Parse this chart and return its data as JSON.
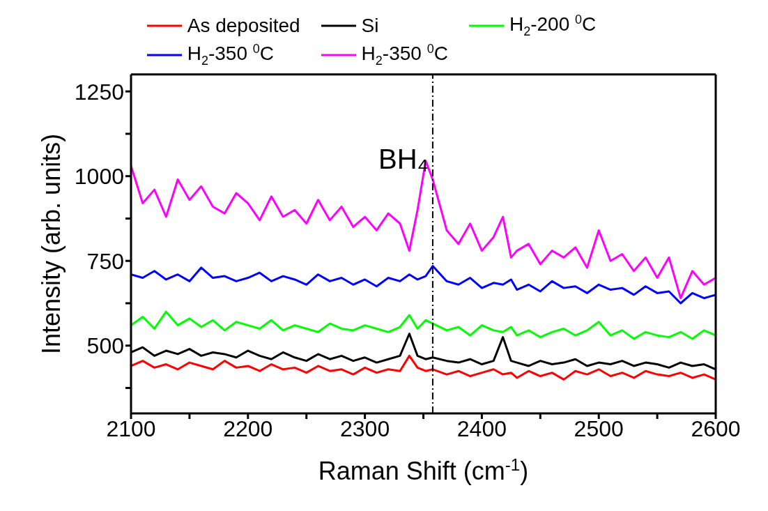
{
  "chart_data": {
    "type": "line",
    "xlabel": "Raman Shift (cm$^{-1}$)",
    "ylabel": "Intensity (arb. units)",
    "x": [
      2100,
      2110,
      2120,
      2130,
      2140,
      2150,
      2160,
      2170,
      2180,
      2190,
      2200,
      2210,
      2220,
      2230,
      2240,
      2250,
      2260,
      2270,
      2280,
      2290,
      2300,
      2310,
      2320,
      2330,
      2338,
      2345,
      2352,
      2358,
      2370,
      2380,
      2390,
      2400,
      2410,
      2418,
      2425,
      2430,
      2440,
      2450,
      2460,
      2470,
      2480,
      2490,
      2500,
      2510,
      2520,
      2530,
      2540,
      2550,
      2560,
      2570,
      2580,
      2590,
      2600
    ],
    "series": [
      {
        "name": "As deposited",
        "color": "#ff0000",
        "values": [
          440,
          455,
          435,
          445,
          430,
          450,
          440,
          430,
          455,
          435,
          440,
          425,
          445,
          430,
          435,
          420,
          440,
          425,
          430,
          415,
          435,
          420,
          430,
          425,
          470,
          435,
          425,
          430,
          415,
          425,
          410,
          420,
          430,
          415,
          420,
          405,
          425,
          410,
          420,
          400,
          425,
          415,
          430,
          410,
          420,
          405,
          425,
          415,
          410,
          420,
          405,
          415,
          400
        ]
      },
      {
        "name": "Si",
        "color": "#000000",
        "values": [
          480,
          495,
          470,
          485,
          475,
          490,
          470,
          480,
          475,
          465,
          485,
          470,
          460,
          480,
          465,
          455,
          475,
          460,
          470,
          455,
          465,
          450,
          460,
          470,
          535,
          470,
          460,
          465,
          455,
          450,
          460,
          445,
          455,
          525,
          455,
          450,
          440,
          455,
          445,
          450,
          460,
          440,
          450,
          445,
          455,
          440,
          450,
          445,
          435,
          450,
          440,
          445,
          430
        ]
      },
      {
        "name": "H$_{2}$-200 $^{0}$C",
        "color": "#00ff00",
        "values": [
          560,
          585,
          550,
          600,
          560,
          580,
          555,
          575,
          545,
          570,
          560,
          550,
          575,
          545,
          560,
          550,
          540,
          565,
          550,
          545,
          560,
          550,
          540,
          555,
          590,
          550,
          575,
          565,
          545,
          555,
          530,
          560,
          545,
          540,
          555,
          530,
          545,
          525,
          540,
          550,
          530,
          545,
          570,
          530,
          545,
          520,
          540,
          530,
          525,
          540,
          520,
          545,
          530
        ]
      },
      {
        "name": "H$_{2}$-350 $^{0}$C",
        "color": "#0000ff",
        "values": [
          710,
          700,
          720,
          695,
          710,
          690,
          730,
          700,
          705,
          690,
          700,
          715,
          690,
          705,
          695,
          680,
          710,
          690,
          700,
          680,
          695,
          675,
          700,
          690,
          710,
          695,
          705,
          735,
          690,
          680,
          700,
          670,
          685,
          680,
          695,
          665,
          680,
          660,
          690,
          670,
          675,
          655,
          680,
          665,
          670,
          650,
          675,
          655,
          660,
          625,
          655,
          640,
          650
        ]
      },
      {
        "name": "H$_{2}$-350 $^{0}$C",
        "color": "#ff00ff",
        "values": [
          1030,
          920,
          960,
          880,
          990,
          930,
          970,
          910,
          890,
          950,
          920,
          870,
          940,
          880,
          900,
          860,
          930,
          870,
          910,
          850,
          880,
          840,
          890,
          860,
          780,
          900,
          1045,
          990,
          840,
          800,
          860,
          780,
          820,
          880,
          760,
          780,
          800,
          740,
          780,
          760,
          790,
          730,
          840,
          750,
          770,
          720,
          760,
          700,
          760,
          640,
          720,
          680,
          700
        ]
      }
    ],
    "xlim": [
      2100,
      2600
    ],
    "xticks": [
      2100,
      {
        "value": 2150,
        "label": null
      },
      2200,
      {
        "value": 2250,
        "label": null
      },
      2300,
      {
        "value": 2350,
        "label": null
      },
      2400,
      {
        "value": 2450,
        "label": null
      },
      2500,
      {
        "value": 2550,
        "label": null
      },
      2600
    ],
    "ylim": [
      300,
      1300
    ],
    "yticks": [
      {
        "value": 375,
        "label": null
      },
      500,
      {
        "value": 625,
        "label": null
      },
      750,
      {
        "value": 875,
        "label": null
      },
      1000,
      {
        "value": 1125,
        "label": null
      },
      1250
    ],
    "ref_lines": [
      {
        "axis": "x",
        "value": 2358,
        "label": "BH₄",
        "color": "#000000",
        "line_style": "dashdot"
      }
    ],
    "grid": false,
    "legend": "top",
    "marker": "none",
    "line_style": "solid"
  }
}
